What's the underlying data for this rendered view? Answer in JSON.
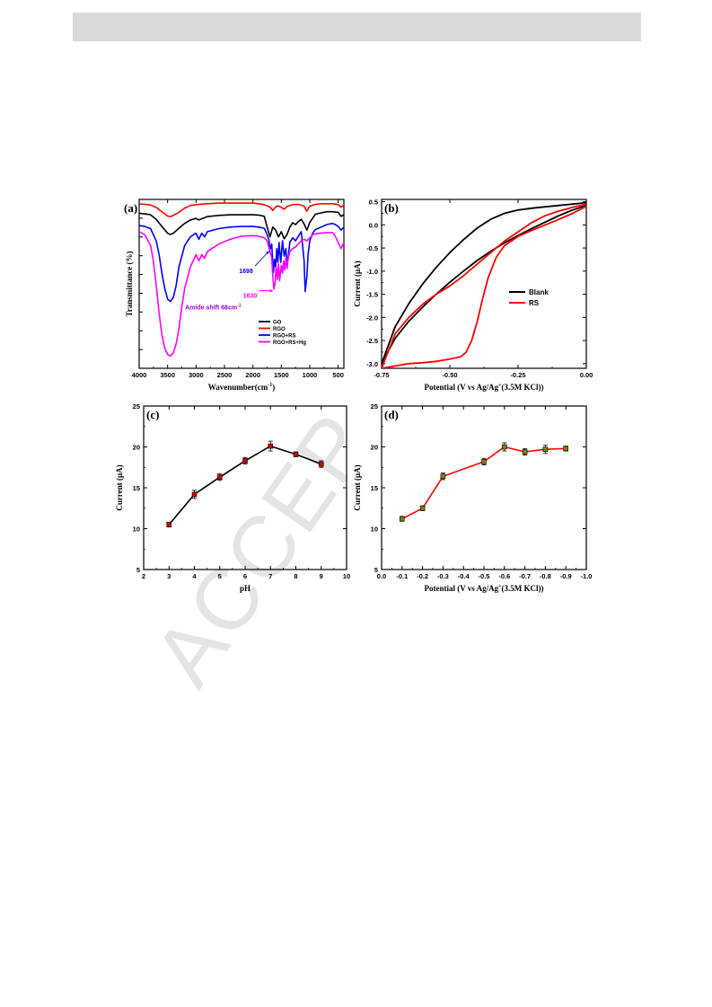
{
  "header": {
    "color": "#d9d9d9"
  },
  "watermark": {
    "text": "ACCEP"
  },
  "chart_data": [
    {
      "id": "a",
      "panel_label": "(a)",
      "type": "line",
      "xlabel": "Wavenumber(cm",
      "xlabel_sup": "-1",
      "xlabel_close": ")",
      "ylabel": "Transmittance (%)",
      "xlim": [
        4000,
        400
      ],
      "x_reversed": true,
      "xticks": [
        4000,
        3500,
        3000,
        2500,
        2000,
        1500,
        1000,
        500
      ],
      "y_ticks_shown": false,
      "legend_position": "bottom-right",
      "series": [
        {
          "name": "GO",
          "color": "#000000",
          "x": [
            4000,
            3900,
            3800,
            3700,
            3600,
            3500,
            3450,
            3400,
            3300,
            3200,
            3100,
            3000,
            2950,
            2900,
            2800,
            2600,
            2400,
            2200,
            2000,
            1900,
            1800,
            1750,
            1700,
            1650,
            1600,
            1550,
            1500,
            1450,
            1400,
            1350,
            1300,
            1250,
            1200,
            1150,
            1100,
            1050,
            1000,
            900,
            800,
            700,
            600,
            500,
            450,
            400
          ],
          "y": [
            88.5,
            88.3,
            88.0,
            86.5,
            84.2,
            82.0,
            81.6,
            82.0,
            83.6,
            85.2,
            86.3,
            86.8,
            86.3,
            86.7,
            87.4,
            87.8,
            88.0,
            88.0,
            88.0,
            87.9,
            87.5,
            84.0,
            80.8,
            84.0,
            83.0,
            80.8,
            82.5,
            80.2,
            81.6,
            84.0,
            85.4,
            84.8,
            85.8,
            86.5,
            85.0,
            83.0,
            85.5,
            88.2,
            88.6,
            89.0,
            89.0,
            88.8,
            87.5,
            88.0
          ]
        },
        {
          "name": "RGO",
          "color": "#ff0000",
          "x": [
            4000,
            3900,
            3800,
            3700,
            3600,
            3500,
            3450,
            3400,
            3300,
            3200,
            3100,
            3000,
            2800,
            2600,
            2400,
            2200,
            2000,
            1900,
            1800,
            1700,
            1650,
            1600,
            1550,
            1500,
            1450,
            1400,
            1300,
            1200,
            1100,
            1050,
            1000,
            900,
            800,
            700,
            600,
            500,
            450,
            400
          ],
          "y": [
            91.5,
            91.4,
            91.2,
            90.4,
            89.0,
            87.6,
            87.4,
            87.8,
            88.8,
            90.2,
            91.0,
            91.3,
            91.6,
            91.8,
            91.8,
            91.8,
            91.8,
            91.6,
            91.3,
            90.5,
            89.4,
            90.6,
            90.9,
            90.4,
            89.8,
            90.7,
            91.3,
            91.4,
            90.8,
            89.2,
            90.8,
            91.4,
            91.6,
            91.6,
            91.6,
            91.3,
            90.5,
            91.0
          ]
        },
        {
          "name": "RGO+RS",
          "color": "#0000ff",
          "x": [
            4000,
            3900,
            3800,
            3700,
            3650,
            3600,
            3550,
            3500,
            3450,
            3400,
            3350,
            3300,
            3200,
            3100,
            3000,
            2950,
            2900,
            2850,
            2800,
            2600,
            2400,
            2200,
            2000,
            1900,
            1800,
            1760,
            1720,
            1698,
            1670,
            1640,
            1620,
            1600,
            1580,
            1560,
            1540,
            1510,
            1480,
            1450,
            1420,
            1400,
            1380,
            1350,
            1300,
            1250,
            1200,
            1150,
            1100,
            1080,
            1050,
            1030,
            1000,
            950,
            900,
            800,
            700,
            600,
            550,
            500,
            450,
            400
          ],
          "y": [
            84.5,
            84.2,
            83.5,
            79.5,
            75.0,
            69.0,
            64.0,
            60.5,
            59.8,
            61.0,
            65.0,
            71.0,
            78.0,
            80.8,
            82.0,
            80.0,
            82.0,
            80.8,
            82.5,
            83.5,
            84.0,
            84.2,
            84.2,
            84.0,
            83.6,
            82.0,
            80.0,
            76.8,
            78.5,
            69.2,
            73.5,
            71.0,
            77.0,
            72.5,
            79.0,
            72.5,
            79.5,
            74.5,
            77.0,
            71.0,
            74.0,
            79.0,
            80.5,
            79.5,
            81.0,
            82.5,
            73.0,
            63.0,
            68.0,
            75.0,
            79.5,
            82.0,
            83.2,
            84.0,
            84.8,
            85.2,
            84.8,
            84.2,
            83.0,
            84.0
          ]
        },
        {
          "name": "RGO+RS+Hg",
          "color": "#ff00ff",
          "x": [
            4000,
            3900,
            3800,
            3750,
            3700,
            3650,
            3600,
            3550,
            3500,
            3450,
            3400,
            3350,
            3300,
            3250,
            3200,
            3100,
            3000,
            2950,
            2900,
            2850,
            2800,
            2600,
            2400,
            2200,
            2000,
            1900,
            1800,
            1750,
            1700,
            1670,
            1650,
            1630,
            1610,
            1590,
            1570,
            1550,
            1530,
            1500,
            1480,
            1460,
            1440,
            1420,
            1400,
            1380,
            1350,
            1300,
            1250,
            1200,
            1150,
            1100,
            1050,
            1000,
            950,
            900,
            800,
            700,
            600,
            550,
            500,
            450,
            400
          ],
          "y": [
            82.5,
            81.5,
            78.0,
            73.0,
            65.0,
            56.0,
            49.0,
            44.5,
            42.5,
            42.0,
            43.0,
            46.0,
            51.0,
            58.0,
            64.0,
            71.0,
            75.0,
            73.0,
            75.0,
            73.8,
            76.0,
            78.5,
            80.0,
            81.0,
            81.2,
            81.0,
            80.5,
            79.5,
            76.0,
            74.0,
            68.0,
            63.8,
            66.0,
            71.0,
            67.0,
            72.0,
            66.5,
            71.5,
            69.0,
            73.0,
            70.0,
            74.0,
            70.5,
            73.5,
            76.0,
            77.0,
            77.5,
            78.5,
            79.5,
            80.0,
            79.5,
            80.5,
            81.5,
            81.8,
            82.0,
            82.2,
            82.2,
            81.0,
            79.0,
            77.0,
            79.0
          ]
        }
      ],
      "ylim": [
        38,
        93
      ],
      "annotations": [
        {
          "text": "1698",
          "color": "#0000ff",
          "at_x": 1698,
          "at_y": 76.8,
          "tx": 2120,
          "ty": 69.0
        },
        {
          "text": "1630",
          "color": "#ff00ff",
          "at_x": 1630,
          "at_y": 63.8,
          "tx": 2050,
          "ty": 61.0
        },
        {
          "text": "Amide shift 68cm",
          "sup": "-1",
          "color": "#9900cc",
          "tx": 2700,
          "ty": 57.2
        }
      ]
    },
    {
      "id": "b",
      "panel_label": "(b)",
      "type": "line",
      "xlabel": "Potential (V vs Ag/Ag",
      "xlabel_sup": "+",
      "xlabel_close": "(3.5M KCl))",
      "ylabel": "Current (μA)",
      "xlim": [
        -0.75,
        0.0
      ],
      "ylim": [
        -3.1,
        0.55
      ],
      "xticks": [
        -0.75,
        -0.5,
        -0.25,
        0.0
      ],
      "xtick_labels": [
        "-0.75",
        "-0.50",
        "-0.25",
        "0.00"
      ],
      "yticks": [
        0.5,
        0.0,
        -0.5,
        -1.0,
        -1.5,
        -2.0,
        -2.5,
        -3.0
      ],
      "ytick_labels": [
        "0.5",
        "0.0",
        "-0.5",
        "-1.0",
        "-1.5",
        "-2.0",
        "-2.5",
        "-3.0"
      ],
      "legend_position": "middle-right",
      "series": [
        {
          "name": "Blank",
          "color": "#000000",
          "x": [
            0.0,
            -0.05,
            -0.1,
            -0.15,
            -0.2,
            -0.25,
            -0.3,
            -0.35,
            -0.4,
            -0.45,
            -0.5,
            -0.55,
            -0.6,
            -0.65,
            -0.7,
            -0.75,
            -0.7,
            -0.65,
            -0.6,
            -0.55,
            -0.5,
            -0.45,
            -0.4,
            -0.35,
            -0.3,
            -0.25,
            -0.2,
            -0.15,
            -0.1,
            -0.05,
            0.0
          ],
          "y": [
            0.42,
            0.32,
            0.2,
            0.06,
            -0.08,
            -0.23,
            -0.39,
            -0.57,
            -0.77,
            -1.0,
            -1.24,
            -1.5,
            -1.78,
            -2.08,
            -2.45,
            -3.0,
            -2.2,
            -1.7,
            -1.28,
            -0.92,
            -0.6,
            -0.32,
            -0.07,
            0.12,
            0.25,
            0.32,
            0.36,
            0.39,
            0.42,
            0.45,
            0.48
          ]
        },
        {
          "name": "RS",
          "color": "#ff0000",
          "x": [
            0.0,
            -0.05,
            -0.1,
            -0.15,
            -0.2,
            -0.25,
            -0.3,
            -0.33,
            -0.36,
            -0.38,
            -0.4,
            -0.42,
            -0.44,
            -0.46,
            -0.5,
            -0.55,
            -0.6,
            -0.65,
            -0.7,
            -0.75,
            -0.7,
            -0.65,
            -0.6,
            -0.55,
            -0.5,
            -0.45,
            -0.4,
            -0.35,
            -0.3,
            -0.25,
            -0.2,
            -0.15,
            -0.1,
            -0.05,
            0.0
          ],
          "y": [
            0.4,
            0.25,
            0.12,
            0.0,
            -0.12,
            -0.25,
            -0.45,
            -0.7,
            -1.15,
            -1.6,
            -2.1,
            -2.5,
            -2.75,
            -2.85,
            -2.9,
            -2.95,
            -2.98,
            -3.0,
            -3.05,
            -3.1,
            -2.35,
            -2.0,
            -1.72,
            -1.5,
            -1.32,
            -1.1,
            -0.85,
            -0.6,
            -0.35,
            -0.15,
            0.05,
            0.2,
            0.3,
            0.38,
            0.45
          ]
        }
      ]
    },
    {
      "id": "c",
      "panel_label": "(c)",
      "type": "line",
      "xlabel": "pH",
      "ylabel": "Current (μA)",
      "xlim": [
        2,
        10
      ],
      "ylim": [
        5,
        25
      ],
      "xticks": [
        2,
        3,
        4,
        5,
        6,
        7,
        8,
        9,
        10
      ],
      "yticks": [
        5,
        10,
        15,
        20,
        25
      ],
      "series": [
        {
          "name": "",
          "color": "#000000",
          "marker_color": "#cc0000",
          "x": [
            3,
            4,
            5,
            6,
            7,
            8,
            9
          ],
          "y": [
            10.5,
            14.2,
            16.3,
            18.3,
            20.1,
            19.1,
            17.9
          ],
          "err": [
            0.3,
            0.5,
            0.4,
            0.4,
            0.6,
            0.3,
            0.4
          ]
        }
      ]
    },
    {
      "id": "d",
      "panel_label": "(d)",
      "type": "line",
      "xlabel": "Potential (V vs Ag/Ag",
      "xlabel_sup": "+",
      "xlabel_close": "(3.5M KCl))",
      "ylabel": "Current (μA)",
      "xlim": [
        0.0,
        -1.0
      ],
      "ylim": [
        5,
        25
      ],
      "xticks": [
        0.0,
        -0.1,
        -0.2,
        -0.3,
        -0.4,
        -0.5,
        -0.6,
        -0.7,
        -0.8,
        -0.9,
        -1.0
      ],
      "xtick_labels": [
        "0.0",
        "-0.1",
        "-0.2",
        "-0.3",
        "-0.4",
        "-0.5",
        "-0.6",
        "-0.7",
        "-0.8",
        "-0.9",
        "-1.0"
      ],
      "yticks": [
        5,
        10,
        15,
        20,
        25
      ],
      "series": [
        {
          "name": "",
          "color": "#ff0000",
          "marker_color": "#808000",
          "x": [
            -0.1,
            -0.2,
            -0.3,
            -0.5,
            -0.6,
            -0.7,
            -0.8,
            -0.9
          ],
          "y": [
            11.2,
            12.5,
            16.4,
            18.2,
            20.0,
            19.4,
            19.7,
            19.8
          ],
          "err": [
            0.3,
            0.3,
            0.4,
            0.4,
            0.5,
            0.4,
            0.5,
            0.3
          ]
        }
      ]
    }
  ]
}
